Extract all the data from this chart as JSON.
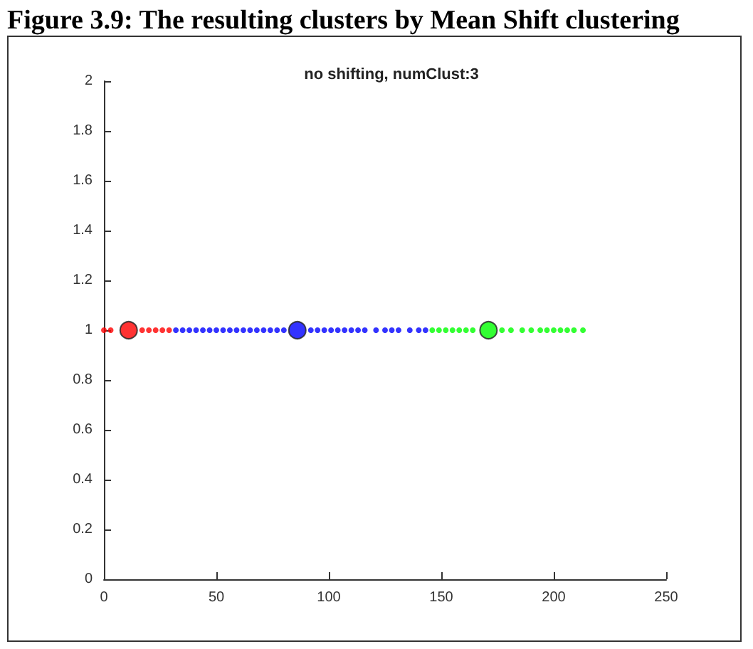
{
  "chart_data": {
    "type": "scatter",
    "title": "Figure 3.9: The resulting clusters by Mean Shift clustering",
    "subtitle": "no shifting, numClust:3",
    "marker": "circle",
    "xlim": [
      0,
      250
    ],
    "xticks": [
      0,
      50,
      100,
      150,
      200,
      250
    ],
    "ylim": [
      0,
      2
    ],
    "yticks": [
      0,
      0.2,
      0.4,
      0.6,
      0.8,
      1,
      1.2,
      1.4,
      1.6,
      1.8,
      2
    ],
    "series": [
      {
        "color": "#ff0000",
        "x": [
          0,
          3,
          17,
          20,
          23,
          26,
          29
        ],
        "values": [
          1,
          1,
          1,
          1,
          1,
          1,
          1
        ]
      },
      {
        "color": "#0000ff",
        "x": [
          32,
          35,
          38,
          41,
          44,
          47,
          50,
          53,
          56,
          59,
          62,
          65,
          68,
          71,
          74,
          77,
          80,
          92,
          95,
          98,
          101,
          104,
          107,
          110,
          113,
          116,
          121,
          125,
          128,
          131,
          136,
          140,
          143
        ],
        "values": [
          1,
          1,
          1,
          1,
          1,
          1,
          1,
          1,
          1,
          1,
          1,
          1,
          1,
          1,
          1,
          1,
          1,
          1,
          1,
          1,
          1,
          1,
          1,
          1,
          1,
          1,
          1,
          1,
          1,
          1,
          1,
          1,
          1
        ]
      },
      {
        "color": "#00ff00",
        "x": [
          146,
          149,
          152,
          155,
          158,
          161,
          164,
          177,
          181,
          186,
          190,
          194,
          197,
          200,
          203,
          206,
          209,
          213
        ],
        "values": [
          1,
          1,
          1,
          1,
          1,
          1,
          1,
          1,
          1,
          1,
          1,
          1,
          1,
          1,
          1,
          1,
          1,
          1
        ]
      },
      {
        "color": "#ff0000",
        "x": [
          11
        ],
        "values": [
          1
        ]
      },
      {
        "color": "#0000ff",
        "x": [
          86
        ],
        "values": [
          1
        ]
      },
      {
        "color": "#00ff00",
        "x": [
          171
        ],
        "values": [
          1
        ]
      }
    ]
  }
}
